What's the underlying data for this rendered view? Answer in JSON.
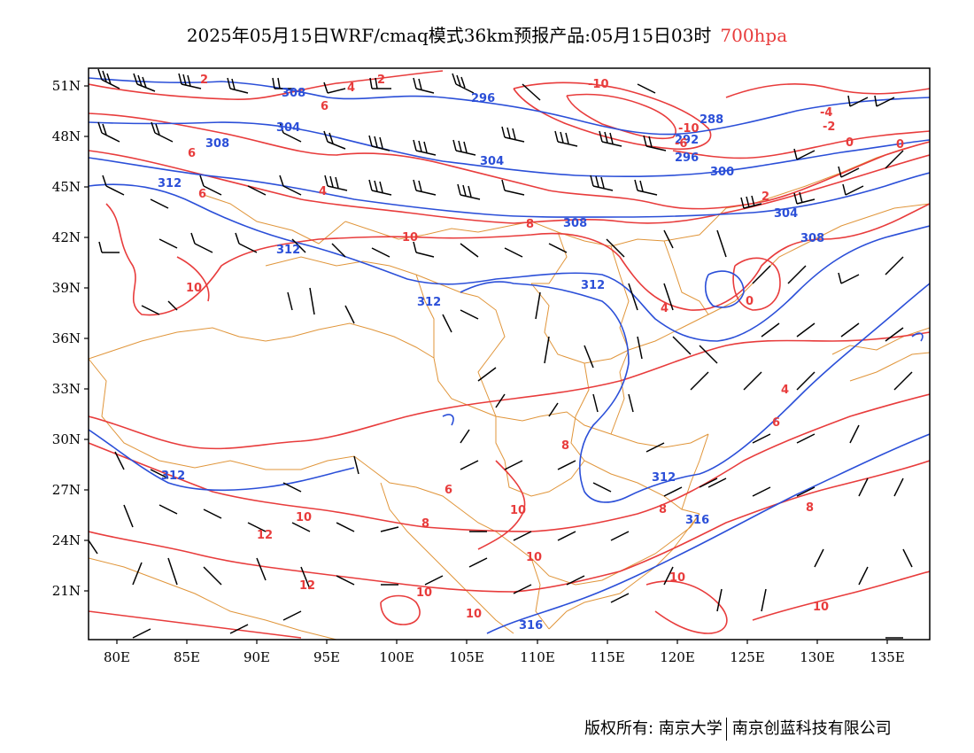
{
  "header": {
    "title": "2025年05月15日WRF/cmaq模式36km预报产品:05月15日03时",
    "level": "700hpa"
  },
  "colors": {
    "height_contour": "#2b4fd8",
    "temp_contour": "#e83c3c",
    "border": "#e0953a",
    "wind_barb": "#000000",
    "level_text": "#e83c3c"
  },
  "axes": {
    "lat_labels": [
      "51N",
      "48N",
      "45N",
      "42N",
      "39N",
      "36N",
      "33N",
      "30N",
      "27N",
      "24N",
      "21N"
    ],
    "lon_labels": [
      "80E",
      "85E",
      "90E",
      "95E",
      "100E",
      "105E",
      "110E",
      "115E",
      "120E",
      "125E",
      "130E",
      "135E"
    ]
  },
  "contour_labels": {
    "height": [
      "308",
      "296",
      "304",
      "288",
      "292",
      "296",
      "300",
      "308",
      "304",
      "312",
      "304",
      "308",
      "312",
      "308",
      "312",
      "312",
      "312",
      "312",
      "316",
      "316"
    ],
    "temperature": [
      "2",
      "4",
      "2",
      "-10",
      "-4",
      "-2",
      "6",
      "-10",
      "-6",
      "6",
      "0",
      "0",
      "2",
      "4",
      "6",
      "8",
      "10",
      "10",
      "0",
      "4",
      "4",
      "8",
      "6",
      "8",
      "8",
      "6",
      "10",
      "12",
      "8",
      "10",
      "10",
      "10",
      "12",
      "10",
      "10",
      "10"
    ]
  },
  "footer": {
    "copyright": "版权所有: 南京大学",
    "company": "南京创蓝科技有限公司"
  }
}
